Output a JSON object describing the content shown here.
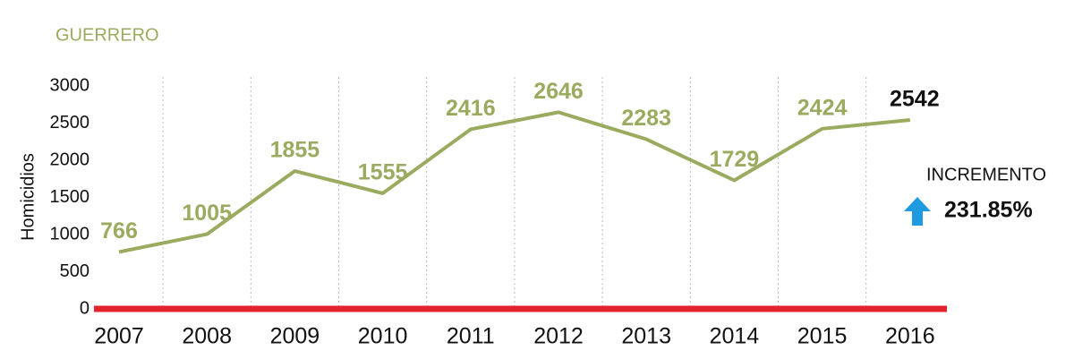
{
  "chart_data": {
    "type": "line",
    "title": "GUERRERO",
    "y_label": "Homicidios",
    "categories": [
      "2007",
      "2008",
      "2009",
      "2010",
      "2011",
      "2012",
      "2013",
      "2014",
      "2015",
      "2016"
    ],
    "values": [
      766,
      1005,
      1855,
      1555,
      2416,
      2646,
      2283,
      1729,
      2424,
      2542
    ],
    "color": "#9aab5f",
    "last_label_color": "#111111",
    "baseline_color": "#e3232b",
    "ylim": [
      0,
      3000
    ],
    "yticks": [
      0,
      500,
      1000,
      1500,
      2000,
      2500,
      3000
    ],
    "grid": true,
    "annotations": [
      "INCREMENTO",
      "231.85%"
    ],
    "arrow_color": "#1e9be0"
  }
}
